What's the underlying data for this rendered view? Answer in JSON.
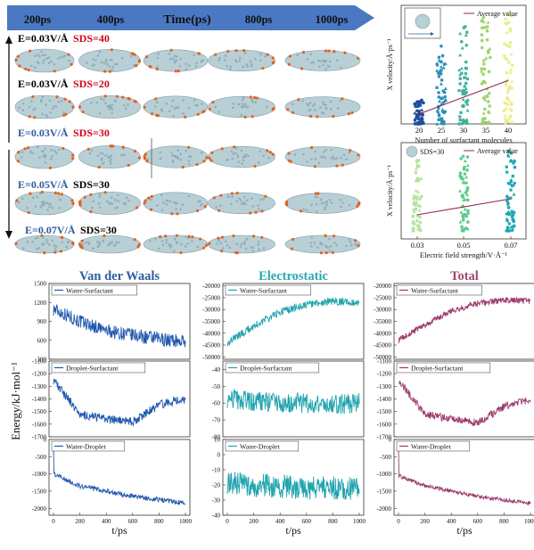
{
  "timeline": {
    "title": "Time(ps)",
    "ticks": [
      "200ps",
      "400ps",
      "800ps",
      "1000ps"
    ]
  },
  "snapshot_rows": [
    {
      "field": "E=0.03V/Å",
      "sds": "SDS=40",
      "field_color": "#000000",
      "sds_color": "#d0021b"
    },
    {
      "field": "E=0.03V/Å",
      "sds": "SDS=20",
      "field_color": "#000000",
      "sds_color": "#d0021b"
    },
    {
      "field": "E=0.03V/Å",
      "sds": "SDS=30",
      "field_color": "#2e5b9e",
      "sds_color": "#d0021b"
    },
    {
      "field": "E=0.05V/Å",
      "sds": "SDS=30",
      "field_color": "#2e5b9e",
      "sds_color": "#000000"
    },
    {
      "field": "E=0.07V/Å",
      "sds": "SDS=30",
      "field_color": "#2e5b9e",
      "sds_color": "#000000"
    }
  ],
  "colors": {
    "droplet": "#b9cfd6",
    "droplet_edge": "#7f9ea8",
    "surfactant": "#e2621d",
    "arrow": "#4a78c2",
    "average_line": "#8b2a55"
  },
  "chart_data": [
    {
      "id": "velocity_vs_surfactant",
      "type": "scatter",
      "xlabel": "Number of surfactant molecules",
      "ylabel": "X velocity/Å·ps⁻¹",
      "x_ticks": [
        "20",
        "25",
        "30",
        "35",
        "40"
      ],
      "y_ticks": [
        "0.0",
        "0.1",
        "0.2",
        "0.3",
        "0.4",
        "0.5",
        "0.6"
      ],
      "ylim": [
        0,
        0.6
      ],
      "legend": "Average value",
      "series": [
        {
          "x": 20,
          "color": "#1f4e9c",
          "y_range": [
            0.0,
            0.12
          ]
        },
        {
          "x": 25,
          "color": "#2a8fb8",
          "y_range": [
            0.0,
            0.4
          ]
        },
        {
          "x": 30,
          "color": "#3fb39a",
          "y_range": [
            0.0,
            0.5
          ]
        },
        {
          "x": 35,
          "color": "#9fd36f",
          "y_range": [
            0.0,
            0.55
          ]
        },
        {
          "x": 40,
          "color": "#e9ee8d",
          "y_range": [
            0.0,
            0.6
          ]
        }
      ],
      "average_line": {
        "x": [
          20,
          40
        ],
        "y": [
          0.05,
          0.22
        ]
      }
    },
    {
      "id": "velocity_vs_field",
      "type": "scatter",
      "xlabel": "Electric field strength/V·Å⁻¹",
      "ylabel": "X velocity/Å·ps⁻¹",
      "x_ticks": [
        "0.03",
        "0.05",
        "0.07"
      ],
      "y_ticks": [
        "0.0",
        "0.1",
        "0.2",
        "0.3",
        "0.4",
        "0.5",
        "0.6"
      ],
      "ylim": [
        0,
        0.6
      ],
      "legend_label": "SDS=30",
      "legend": "Average value",
      "series": [
        {
          "x": 0.03,
          "color": "#b6e39c",
          "y_range": [
            0.05,
            0.5
          ]
        },
        {
          "x": 0.05,
          "color": "#5ccc8b",
          "y_range": [
            0.05,
            0.52
          ]
        },
        {
          "x": 0.07,
          "color": "#1aa8b4",
          "y_range": [
            0.05,
            0.55
          ]
        }
      ],
      "average_line": {
        "x": [
          0.03,
          0.07
        ],
        "y": [
          0.15,
          0.25
        ]
      }
    }
  ],
  "energy": {
    "ylabel": "Energy/kJ·mol⁻¹",
    "xlabel": "t/ps",
    "x_ticks": [
      "0",
      "200",
      "400",
      "600",
      "800",
      "1000"
    ],
    "columns": [
      {
        "title": "Van der Waals",
        "title_color": "#2e5b9e",
        "line_color": "#1f57ad",
        "panels": [
          {
            "legend": "Water-Surfactant",
            "y_ticks": [
              "1500",
              "1200",
              "900",
              "600",
              "300"
            ],
            "ylim": [
              300,
              1500
            ],
            "trend": [
              1100,
              900,
              750,
              680,
              620,
              580
            ],
            "noise": 110
          },
          {
            "legend": "Droplet-Surfactant",
            "y_ticks": [
              "-1100",
              "-1200",
              "-1300",
              "-1400",
              "-1500",
              "-1600",
              "-1700"
            ],
            "ylim": [
              -1700,
              -1100
            ],
            "trend": [
              -1250,
              -1520,
              -1560,
              -1580,
              -1450,
              -1400
            ],
            "noise": 35
          },
          {
            "legend": "Water-Droplet",
            "y_ticks": [
              "0",
              "-500",
              "-1000",
              "-1500",
              "-2000"
            ],
            "ylim": [
              -2200,
              0
            ],
            "trend": [
              -1000,
              -1350,
              -1500,
              -1650,
              -1750,
              -1850
            ],
            "noise": 70
          }
        ]
      },
      {
        "title": "Electrostatic",
        "title_color": "#2aa8b0",
        "line_color": "#1fa3ad",
        "panels": [
          {
            "legend": "Water-Surfactant",
            "y_ticks": [
              "-20000",
              "-25000",
              "-30000",
              "-35000",
              "-40000",
              "-45000",
              "-50000"
            ],
            "ylim": [
              -51000,
              -19000
            ],
            "trend": [
              -44000,
              -37000,
              -31000,
              -28000,
              -26500,
              -27000
            ],
            "noise": 1600
          },
          {
            "legend": "Droplet-Surfactant",
            "y_ticks": [
              "-40",
              "-50",
              "-60",
              "-70",
              "-80"
            ],
            "ylim": [
              -80,
              -35
            ],
            "trend": [
              -57,
              -59,
              -60,
              -60,
              -61,
              -60
            ],
            "noise": 6
          },
          {
            "legend": "Water-Droplet",
            "y_ticks": [
              "10",
              "0",
              "-10",
              "-20",
              "-30",
              "-40"
            ],
            "ylim": [
              -40,
              10
            ],
            "trend": [
              -18,
              -20,
              -21,
              -22,
              -22,
              -23
            ],
            "noise": 8
          }
        ]
      },
      {
        "title": "Total",
        "title_color": "#a3446f",
        "line_color": "#9a3a6a",
        "panels": [
          {
            "legend": "Water-Surfactant",
            "y_ticks": [
              "-20000",
              "-25000",
              "-30000",
              "-35000",
              "-40000",
              "-45000",
              "-50000"
            ],
            "ylim": [
              -51000,
              -19000
            ],
            "trend": [
              -43000,
              -36500,
              -30500,
              -27500,
              -26000,
              -26500
            ],
            "noise": 1300
          },
          {
            "legend": "Droplet-Surfactant",
            "y_ticks": [
              "-1100",
              "-1200",
              "-1300",
              "-1400",
              "-1500",
              "-1600",
              "-1700"
            ],
            "ylim": [
              -1700,
              -1100
            ],
            "trend": [
              -1250,
              -1520,
              -1560,
              -1590,
              -1460,
              -1410
            ],
            "noise": 30
          },
          {
            "legend": "Water-Droplet",
            "y_ticks": [
              "0",
              "-500",
              "-1000",
              "-1500",
              "-2000"
            ],
            "ylim": [
              -2200,
              0
            ],
            "trend": [
              -1050,
              -1350,
              -1500,
              -1650,
              -1760,
              -1850
            ],
            "noise": 55
          }
        ]
      }
    ]
  }
}
